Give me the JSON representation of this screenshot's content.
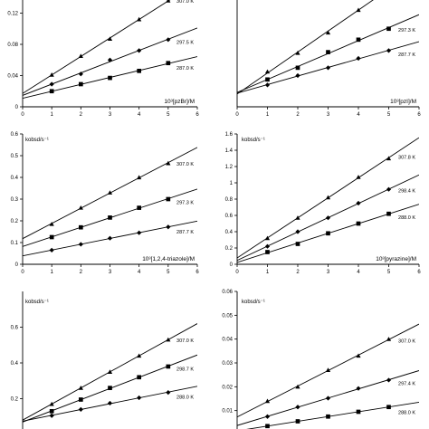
{
  "chart_data": [
    {
      "type": "scatter",
      "title": "",
      "xlabel": "10³[pzBr]/M",
      "ylabel": "",
      "xlim": [
        0,
        6
      ],
      "ylim": [
        0,
        0.16
      ],
      "x_ticks": [
        "0",
        "1",
        "2",
        "3",
        "4",
        "5",
        "6"
      ],
      "y_ticks": [
        "0",
        "0.04",
        "0.08",
        "0.12"
      ],
      "grid": false,
      "series": [
        {
          "name": "307.0 K",
          "marker": "triangle",
          "x": [
            1,
            2,
            3,
            4,
            5
          ],
          "y": [
            0.041,
            0.065,
            0.087,
            0.112,
            0.136
          ]
        },
        {
          "name": "297.5 K",
          "marker": "diamond",
          "x": [
            1,
            2,
            3,
            4,
            5
          ],
          "y": [
            0.029,
            0.042,
            0.06,
            0.072,
            0.086
          ]
        },
        {
          "name": "287.0 K",
          "marker": "square",
          "x": [
            1,
            2,
            3,
            4,
            5
          ],
          "y": [
            0.02,
            0.029,
            0.037,
            0.046,
            0.056
          ]
        }
      ]
    },
    {
      "type": "scatter",
      "title": "",
      "xlabel": "10³[pzI]/M",
      "ylabel": "",
      "xlim": [
        0,
        6
      ],
      "ylim": [
        0,
        0.16
      ],
      "x_ticks": [
        "0",
        "1",
        "2",
        "3",
        "4",
        "5",
        "6"
      ],
      "y_ticks": [],
      "grid": false,
      "series": [
        {
          "name": "307.0 K",
          "marker": "triangle",
          "x": [
            1,
            2,
            3,
            4,
            5
          ],
          "y": [
            0.045,
            0.069,
            0.095,
            0.124,
            0.152
          ]
        },
        {
          "name": "297.3 K",
          "marker": "square",
          "x": [
            1,
            2,
            3,
            4,
            5
          ],
          "y": [
            0.035,
            0.05,
            0.07,
            0.086,
            0.1
          ]
        },
        {
          "name": "287.7 K",
          "marker": "diamond",
          "x": [
            1,
            2,
            3,
            4,
            5
          ],
          "y": [
            0.028,
            0.04,
            0.05,
            0.062,
            0.072
          ]
        }
      ]
    },
    {
      "type": "scatter",
      "title": "",
      "xlabel": "10³[1,2,4-triazole]/M",
      "ylabel": "kobsd/s⁻¹",
      "xlim": [
        0,
        6
      ],
      "ylim": [
        0,
        0.6
      ],
      "x_ticks": [
        "0",
        "1",
        "2",
        "3",
        "4",
        "5",
        "6"
      ],
      "y_ticks": [
        "0",
        "0.1",
        "0.2",
        "0.3",
        "0.4",
        "0.5",
        "0.6"
      ],
      "grid": false,
      "series": [
        {
          "name": "307.0 K",
          "marker": "triangle",
          "x": [
            1,
            2,
            3,
            4,
            5
          ],
          "y": [
            0.185,
            0.26,
            0.33,
            0.4,
            0.465
          ]
        },
        {
          "name": "297.3 K",
          "marker": "square",
          "x": [
            1,
            2,
            3,
            4,
            5
          ],
          "y": [
            0.125,
            0.17,
            0.215,
            0.26,
            0.3
          ]
        },
        {
          "name": "287.7 K",
          "marker": "diamond",
          "x": [
            1,
            2,
            3,
            4,
            5
          ],
          "y": [
            0.065,
            0.092,
            0.12,
            0.145,
            0.172
          ]
        }
      ]
    },
    {
      "type": "scatter",
      "title": "",
      "xlabel": "10³[pyrazine]/M",
      "ylabel": "kobsd/s⁻¹",
      "xlim": [
        0,
        6
      ],
      "ylim": [
        0,
        1.6
      ],
      "x_ticks": [
        "0",
        "1",
        "2",
        "3",
        "4",
        "5",
        "6"
      ],
      "y_ticks": [
        "0",
        "0.2",
        "0.4",
        "0.6",
        "0.8",
        "1",
        "1.2",
        "1.4",
        "1.6"
      ],
      "grid": false,
      "series": [
        {
          "name": "307.8 K",
          "marker": "triangle",
          "x": [
            1,
            2,
            3,
            4,
            5
          ],
          "y": [
            0.32,
            0.57,
            0.82,
            1.07,
            1.3
          ]
        },
        {
          "name": "298.4 K",
          "marker": "diamond",
          "x": [
            1,
            2,
            3,
            4,
            5
          ],
          "y": [
            0.22,
            0.4,
            0.57,
            0.75,
            0.92
          ]
        },
        {
          "name": "288.0 K",
          "marker": "square",
          "x": [
            1,
            2,
            3,
            4,
            5
          ],
          "y": [
            0.15,
            0.25,
            0.38,
            0.5,
            0.62
          ]
        }
      ]
    },
    {
      "type": "scatter",
      "title": "",
      "xlabel": "",
      "ylabel": "kobsd/s⁻¹",
      "xlim": [
        0,
        6
      ],
      "ylim": [
        0,
        0.8
      ],
      "x_ticks": [],
      "y_ticks": [
        "0.2",
        "0.4",
        "0.6"
      ],
      "grid": false,
      "series": [
        {
          "name": "307.0 K",
          "marker": "triangle",
          "x": [
            1,
            2,
            3,
            4,
            5
          ],
          "y": [
            0.17,
            0.26,
            0.35,
            0.44,
            0.53
          ]
        },
        {
          "name": "298.7 K",
          "marker": "square",
          "x": [
            1,
            2,
            3,
            4,
            5
          ],
          "y": [
            0.13,
            0.195,
            0.26,
            0.32,
            0.38
          ]
        },
        {
          "name": "288.0 K",
          "marker": "diamond",
          "x": [
            1,
            2,
            3,
            4,
            5
          ],
          "y": [
            0.105,
            0.14,
            0.175,
            0.205,
            0.235
          ]
        }
      ]
    },
    {
      "type": "scatter",
      "title": "",
      "xlabel": "",
      "ylabel": "kobsd/s⁻¹",
      "xlim": [
        0,
        6
      ],
      "ylim": [
        0,
        0.06
      ],
      "x_ticks": [],
      "y_ticks": [
        "0.01",
        "0.02",
        "0.03",
        "0.04",
        "0.05",
        "0.06"
      ],
      "grid": false,
      "series": [
        {
          "name": "307.0 K",
          "marker": "triangle",
          "x": [
            1,
            2,
            3,
            4,
            5
          ],
          "y": [
            0.014,
            0.02,
            0.027,
            0.033,
            0.04
          ]
        },
        {
          "name": "297.4 K",
          "marker": "diamond",
          "x": [
            1,
            2,
            3,
            4,
            5
          ],
          "y": [
            0.0075,
            0.0115,
            0.0152,
            0.0193,
            0.0228
          ]
        },
        {
          "name": "288.0 K",
          "marker": "square",
          "x": [
            1,
            2,
            3,
            4,
            5
          ],
          "y": [
            0.0035,
            0.0055,
            0.0075,
            0.0095,
            0.0115
          ]
        }
      ]
    }
  ]
}
